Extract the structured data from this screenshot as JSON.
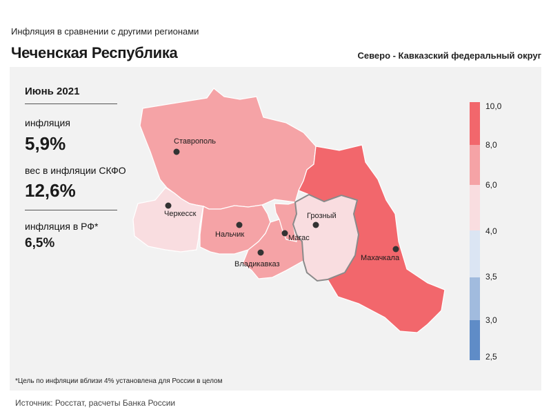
{
  "header": {
    "subtitle": "Инфляция  в сравнении  с другими  регионами",
    "title": "Чеченская Республика",
    "district": "Северо - Кавказский федеральный округ"
  },
  "info": {
    "month": "Июнь 2021",
    "inflation_label": "инфляция",
    "inflation_value": "5,9%",
    "weight_label": "вес в инфляции  СКФО",
    "weight_value": "12,6%",
    "rf_label": "инфляция  в РФ*",
    "rf_value": "6,5%"
  },
  "cities": {
    "stavropol": "Ставрополь",
    "cherkessk": "Черкесск",
    "nalchik": "Нальчик",
    "magas": "Магас",
    "grozny": "Грозный",
    "vladikavkaz": "Владикавказ",
    "makhachkala": "Махачкала"
  },
  "colors": {
    "dagestan": "#f2676c",
    "stavropol": "#f5a3a6",
    "kbr": "#f5a3a6",
    "north_ossetia": "#f5a3a6",
    "ingushetia": "#f5a3a6",
    "chechnya": "#f9dde0",
    "kchr": "#f9dde0"
  },
  "scale": {
    "labels": [
      "10,0",
      "8,0",
      "6,0",
      "4,0",
      "3,5",
      "3,0",
      "2,5"
    ],
    "colors": [
      "#f2676c",
      "#f5a3a6",
      "#f9dde0",
      "#dbe5f3",
      "#a1bbde",
      "#5f8cc7"
    ]
  },
  "footnote": "*Цель по инфляции вблизи 4% установлена для России в целом",
  "source": "Источник: Росстат, расчеты Банка России"
}
